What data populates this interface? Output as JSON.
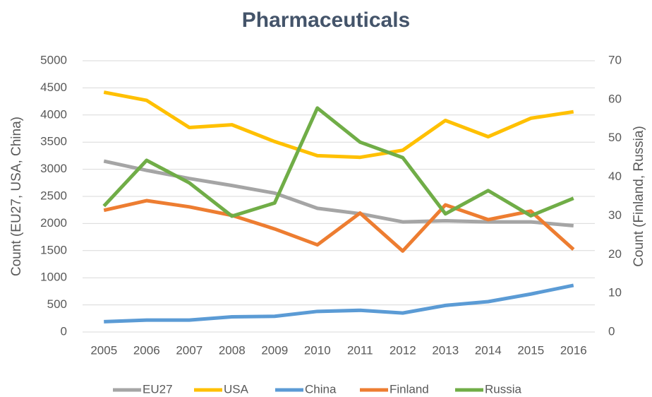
{
  "chart_data": {
    "type": "line",
    "title": "Pharmaceuticals",
    "y_label": "Count (EU27, USA, China)",
    "y2_label": "Count (Finland, Russia)",
    "categories": [
      "2005",
      "2006",
      "2007",
      "2008",
      "2009",
      "2010",
      "2011",
      "2012",
      "2013",
      "2014",
      "2015",
      "2016"
    ],
    "series": [
      {
        "name": "EU27",
        "color": "#a5a5a5",
        "values": [
          3150,
          2980,
          2830,
          2700,
          2560,
          2280,
          2180,
          2030,
          2050,
          2030,
          2030,
          1960
        ]
      },
      {
        "name": "USA",
        "color": "#ffc000",
        "values": [
          4420,
          4270,
          3770,
          3820,
          3510,
          3250,
          3220,
          3350,
          3900,
          3600,
          3940,
          4060
        ]
      },
      {
        "name": "China",
        "color": "#5b9bd5",
        "values": [
          190,
          220,
          220,
          280,
          290,
          380,
          400,
          350,
          490,
          560,
          700,
          860
        ]
      },
      {
        "name": "Finland",
        "color": "#ed7d31",
        "axis": "y2",
        "values": [
          31.4,
          33.9,
          32.3,
          30.1,
          26.6,
          22.5,
          30.7,
          20.9,
          32.8,
          29,
          31.2,
          21.3
        ]
      },
      {
        "name": "Russia",
        "color": "#70ad47",
        "axis": "y2",
        "values": [
          32.5,
          44.3,
          38.5,
          29.9,
          33.3,
          57.8,
          49,
          45,
          30.5,
          36.5,
          30,
          34.5
        ]
      }
    ],
    "ylim": [
      0,
      5000
    ],
    "yticks": [
      0,
      500,
      1000,
      1500,
      2000,
      2500,
      3000,
      3500,
      4000,
      4500,
      5000
    ],
    "y2lim": [
      0,
      70
    ],
    "y2ticks": [
      0,
      10,
      20,
      30,
      40,
      50,
      60,
      70
    ],
    "grid": true,
    "legend": "bottom"
  }
}
